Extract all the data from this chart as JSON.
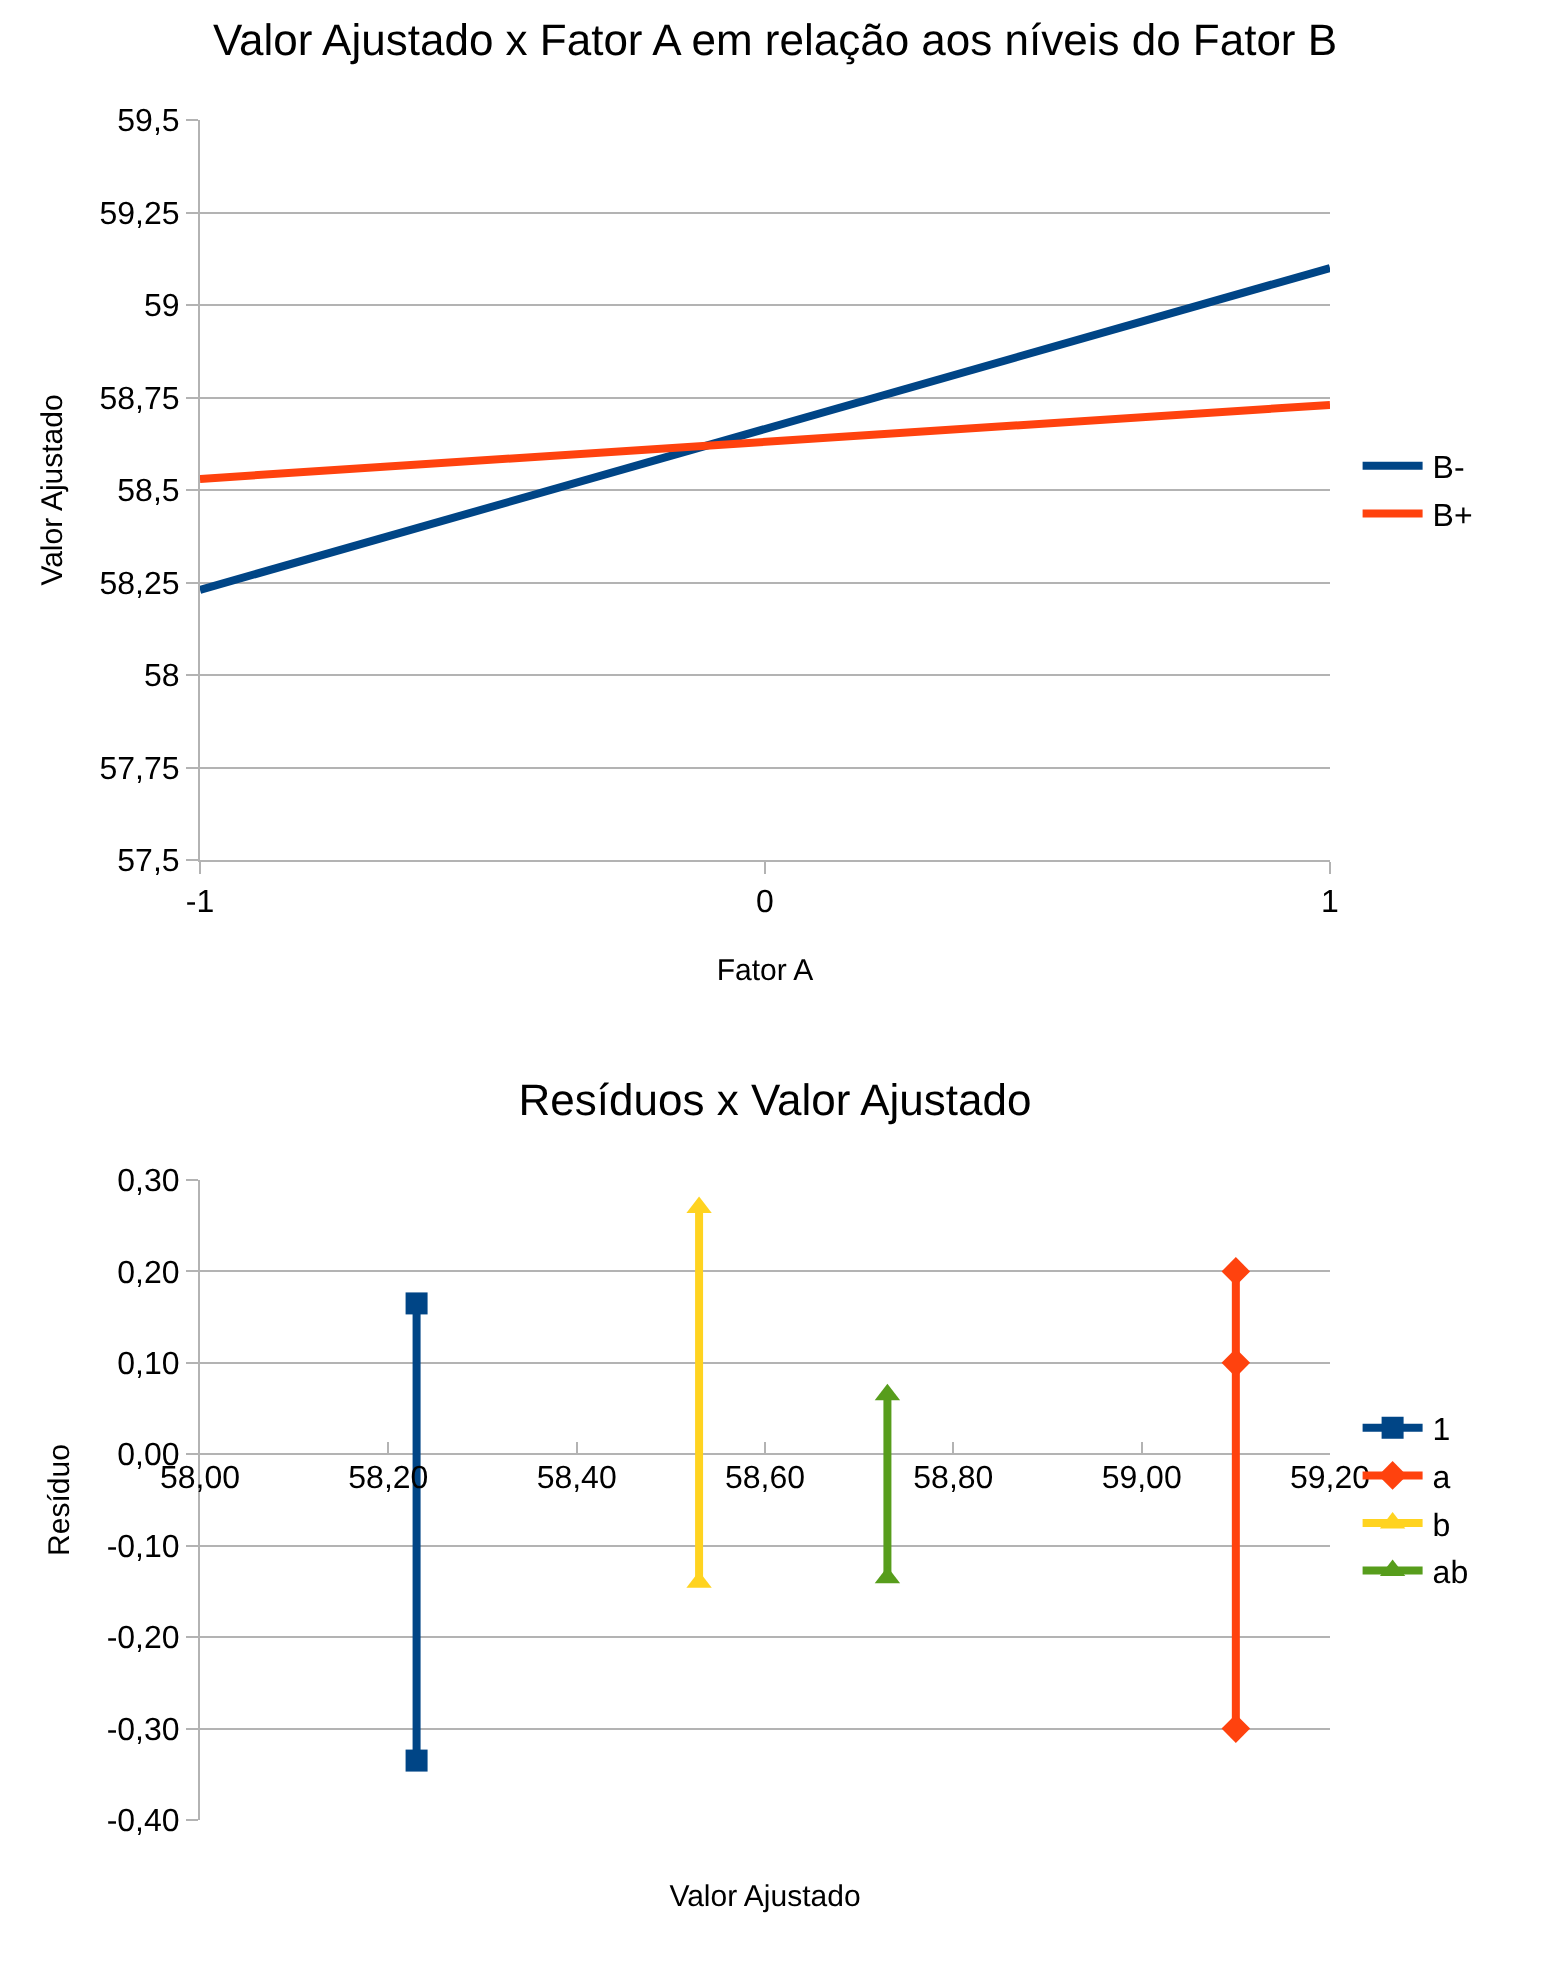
{
  "chart_data": [
    {
      "type": "line",
      "title": "Valor Ajustado x Fator A em relação aos níveis do Fator B",
      "xlabel": "Fator A",
      "ylabel": "Valor Ajustado",
      "x": [
        -1,
        1
      ],
      "series": [
        {
          "name": "B-",
          "color": "#004586",
          "values": [
            58.23,
            59.1
          ]
        },
        {
          "name": "B+",
          "color": "#ff420e",
          "values": [
            58.53,
            58.73
          ]
        }
      ],
      "xlim": [
        -1,
        1
      ],
      "xticks": [
        -1,
        0,
        1
      ],
      "ylim": [
        57.5,
        59.5
      ],
      "yticks": [
        {
          "value": 57.5,
          "label": "57,5"
        },
        {
          "value": 57.75,
          "label": "57,75"
        },
        58,
        {
          "value": 58.25,
          "label": "58,25"
        },
        {
          "value": 58.5,
          "label": "58,5"
        },
        {
          "value": 58.75,
          "label": "58,75"
        },
        59,
        {
          "value": 59.25,
          "label": "59,25"
        },
        {
          "value": 59.5,
          "label": "59,5"
        }
      ],
      "grid": "y",
      "legend": "right",
      "marker": "none",
      "line_style": "solid"
    },
    {
      "type": "line",
      "title": "Resíduos x Valor Ajustado",
      "xlabel": "Valor Ajustado",
      "ylabel": "Resíduo",
      "series": [
        {
          "name": "1",
          "color": "#004586",
          "marker": "square",
          "x": [
            58.23,
            58.23
          ],
          "values": [
            0.165,
            -0.335
          ]
        },
        {
          "name": "a",
          "color": "#ff420e",
          "marker": "diamond",
          "x": [
            59.1,
            59.1,
            59.1
          ],
          "values": [
            0.2,
            0.1,
            -0.3
          ]
        },
        {
          "name": "b",
          "color": "#ffd320",
          "marker": "triangle",
          "x": [
            58.53,
            58.53
          ],
          "values": [
            0.27,
            -0.14
          ]
        },
        {
          "name": "ab",
          "color": "#579d1c",
          "marker": "triangle",
          "x": [
            58.73,
            58.73
          ],
          "values": [
            0.065,
            -0.135
          ]
        }
      ],
      "xlim": [
        58,
        59.2
      ],
      "xticks": [
        {
          "value": 58,
          "label": "58,00"
        },
        {
          "value": 58.2,
          "label": "58,20"
        },
        {
          "value": 58.4,
          "label": "58,40"
        },
        {
          "value": 58.6,
          "label": "58,60"
        },
        {
          "value": 58.8,
          "label": "58,80"
        },
        {
          "value": 59,
          "label": "59,00"
        },
        {
          "value": 59.2,
          "label": "59,20"
        }
      ],
      "ylim": [
        -0.4,
        0.3
      ],
      "yticks": [
        {
          "value": -0.4,
          "label": "-0,40"
        },
        {
          "value": -0.3,
          "label": "-0,30"
        },
        {
          "value": -0.2,
          "label": "-0,20"
        },
        {
          "value": -0.1,
          "label": "-0,10"
        },
        {
          "value": 0,
          "label": "0,00"
        },
        {
          "value": 0.1,
          "label": "0,10"
        },
        {
          "value": 0.2,
          "label": "0,20"
        },
        {
          "value": 0.3,
          "label": "0,30"
        }
      ],
      "grid": "y",
      "legend": "right",
      "line_style": "solid"
    }
  ]
}
